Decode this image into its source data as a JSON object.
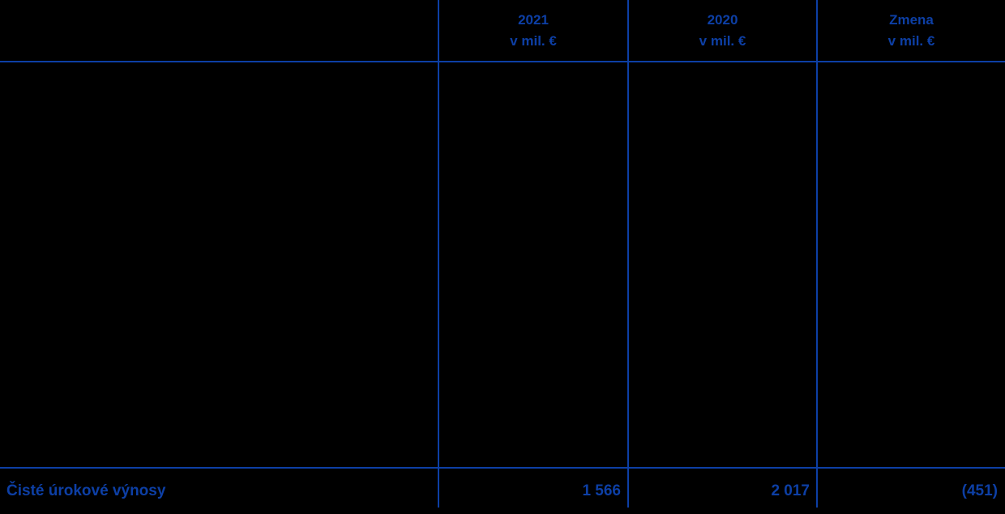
{
  "colors": {
    "accent_blue": "#0D3FA5",
    "background": "#000000"
  },
  "table": {
    "header": {
      "columns": [
        {
          "line1": "2021",
          "line2": "v mil. €"
        },
        {
          "line1": "2020",
          "line2": "v mil. €"
        },
        {
          "line1": "Zmena",
          "line2": "v mil. €"
        }
      ]
    },
    "total_row": {
      "label": "Čisté úrokové výnosy",
      "value_2021": "1 566",
      "value_2020": "2 017",
      "value_change": "(451)"
    }
  }
}
